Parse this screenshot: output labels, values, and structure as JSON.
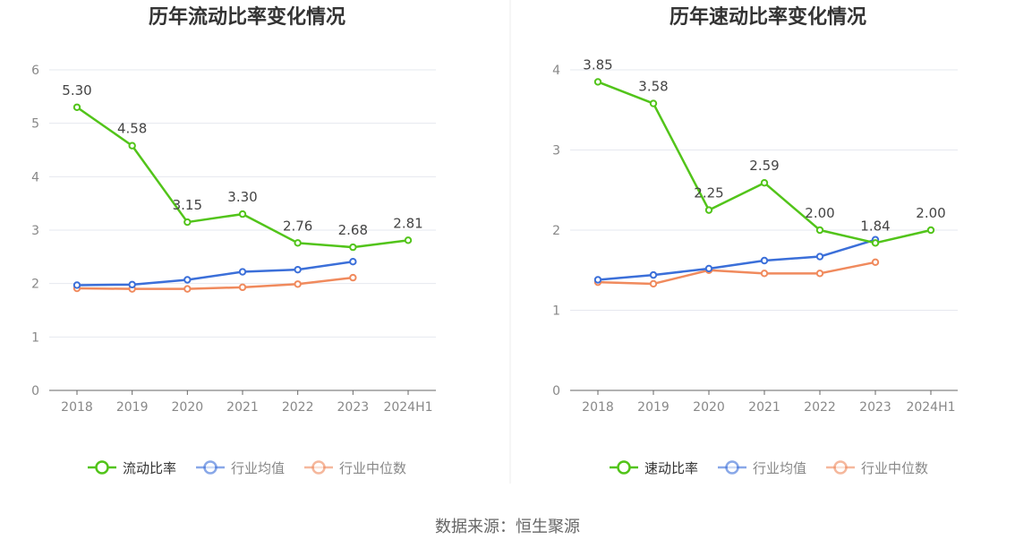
{
  "source_label": "数据来源：恒生聚源",
  "colors": {
    "green": "#52c41a",
    "blue": "#3b6fd9",
    "orange": "#f08a5d",
    "grid": "#e6e8ef",
    "axis": "#666666",
    "tick": "#888888"
  },
  "chart_data": [
    {
      "type": "line",
      "title": "历年流动比率变化情况",
      "categories": [
        "2018",
        "2019",
        "2020",
        "2021",
        "2022",
        "2023",
        "2024H1"
      ],
      "ylim": [
        0,
        6
      ],
      "yticks": [
        "0",
        "1",
        "2",
        "3",
        "4",
        "5",
        "6"
      ],
      "grid": true,
      "legend_position": "bottom",
      "series": [
        {
          "name": "流动比率",
          "color": "#52c41a",
          "values": [
            5.3,
            4.58,
            3.15,
            3.3,
            2.76,
            2.68,
            2.81
          ],
          "labels": [
            "5.30",
            "4.58",
            "3.15",
            "3.30",
            "2.76",
            "2.68",
            "2.81"
          ]
        },
        {
          "name": "行业均值",
          "color": "#3b6fd9",
          "values": [
            1.97,
            1.98,
            2.07,
            2.22,
            2.26,
            2.41,
            null
          ]
        },
        {
          "name": "行业中位数",
          "color": "#f08a5d",
          "values": [
            1.91,
            1.9,
            1.9,
            1.93,
            1.99,
            2.11,
            null
          ]
        }
      ]
    },
    {
      "type": "line",
      "title": "历年速动比率变化情况",
      "categories": [
        "2018",
        "2019",
        "2020",
        "2021",
        "2022",
        "2023",
        "2024H1"
      ],
      "ylim": [
        0,
        4
      ],
      "yticks": [
        "0",
        "1",
        "2",
        "3",
        "4"
      ],
      "grid": true,
      "legend_position": "bottom",
      "series": [
        {
          "name": "速动比率",
          "color": "#52c41a",
          "values": [
            3.85,
            3.58,
            2.25,
            2.59,
            2.0,
            1.84,
            2.0
          ],
          "labels": [
            "3.85",
            "3.58",
            "2.25",
            "2.59",
            "2.00",
            "1.84",
            "2.00"
          ]
        },
        {
          "name": "行业均值",
          "color": "#3b6fd9",
          "values": [
            1.38,
            1.44,
            1.52,
            1.62,
            1.67,
            1.88,
            null
          ]
        },
        {
          "name": "行业中位数",
          "color": "#f08a5d",
          "values": [
            1.35,
            1.33,
            1.5,
            1.46,
            1.46,
            1.6,
            null
          ]
        }
      ]
    }
  ]
}
